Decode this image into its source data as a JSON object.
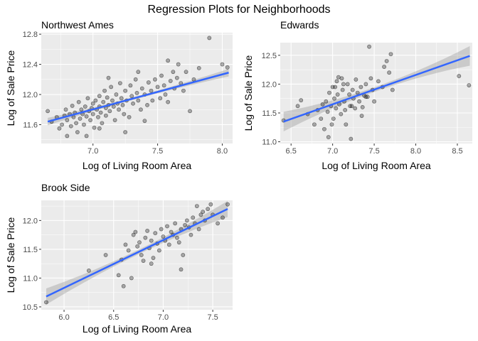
{
  "title": "Regression Plots for Neighborhoods",
  "colors": {
    "panel_bg": "#ebebeb",
    "grid_major": "#ffffff",
    "point_fill": "#000000",
    "point_stroke": "#000000",
    "line": "#3366ff",
    "ribbon": "#999999"
  },
  "chart_data": [
    {
      "type": "scatter",
      "title": "Northwest Ames",
      "xlabel": "Log of Living Room Area",
      "ylabel": "Log of Sale Price",
      "xlim": [
        6.6,
        8.08
      ],
      "ylim": [
        11.35,
        12.82
      ],
      "xticks": [
        7.0,
        7.5,
        8.0
      ],
      "yticks": [
        11.6,
        12.0,
        12.4,
        12.8
      ],
      "xtick_labels": [
        "7.0",
        "7.5",
        "8.0"
      ],
      "ytick_labels": [
        "11.6",
        "12.0",
        "12.4",
        "12.8"
      ],
      "grid": true,
      "fit": {
        "x": [
          6.65,
          8.05
        ],
        "y": [
          11.64,
          12.29
        ],
        "band_half_width_ends": 0.05,
        "band_half_width_mid": 0.018
      },
      "points": [
        [
          6.65,
          11.78
        ],
        [
          6.68,
          11.64
        ],
        [
          6.72,
          11.7
        ],
        [
          6.74,
          11.55
        ],
        [
          6.76,
          11.6
        ],
        [
          6.78,
          11.72
        ],
        [
          6.79,
          11.8
        ],
        [
          6.8,
          11.66
        ],
        [
          6.82,
          11.74
        ],
        [
          6.83,
          11.58
        ],
        [
          6.84,
          11.85
        ],
        [
          6.85,
          11.7
        ],
        [
          6.86,
          11.76
        ],
        [
          6.87,
          11.62
        ],
        [
          6.88,
          11.5
        ],
        [
          6.89,
          11.9
        ],
        [
          6.9,
          11.68
        ],
        [
          6.91,
          11.8
        ],
        [
          6.92,
          11.74
        ],
        [
          6.93,
          11.6
        ],
        [
          6.94,
          11.84
        ],
        [
          6.95,
          11.71
        ],
        [
          6.96,
          11.95
        ],
        [
          6.97,
          11.78
        ],
        [
          6.98,
          11.66
        ],
        [
          6.99,
          11.82
        ],
        [
          7.0,
          11.88
        ],
        [
          7.0,
          11.74
        ],
        [
          7.01,
          11.56
        ],
        [
          7.02,
          11.92
        ],
        [
          7.03,
          11.8
        ],
        [
          7.04,
          11.7
        ],
        [
          7.05,
          11.98
        ],
        [
          7.05,
          11.84
        ],
        [
          7.06,
          11.76
        ],
        [
          7.07,
          11.62
        ],
        [
          7.08,
          11.9
        ],
        [
          7.09,
          12.05
        ],
        [
          7.1,
          11.82
        ],
        [
          7.1,
          11.72
        ],
        [
          7.11,
          11.96
        ],
        [
          7.12,
          11.86
        ],
        [
          7.13,
          11.78
        ],
        [
          7.14,
          12.1
        ],
        [
          7.15,
          11.92
        ],
        [
          7.16,
          11.84
        ],
        [
          7.17,
          11.66
        ],
        [
          7.18,
          12.0
        ],
        [
          7.19,
          11.88
        ],
        [
          7.2,
          11.8
        ],
        [
          7.21,
          12.15
        ],
        [
          7.22,
          11.95
        ],
        [
          7.23,
          11.86
        ],
        [
          7.24,
          11.74
        ],
        [
          7.25,
          12.05
        ],
        [
          7.26,
          11.92
        ],
        [
          7.28,
          11.7
        ],
        [
          7.29,
          12.12
        ],
        [
          7.3,
          11.98
        ],
        [
          7.31,
          11.88
        ],
        [
          7.33,
          12.2
        ],
        [
          7.34,
          12.02
        ],
        [
          7.35,
          11.92
        ],
        [
          7.37,
          11.8
        ],
        [
          7.38,
          12.08
        ],
        [
          7.4,
          12.0
        ],
        [
          7.42,
          11.86
        ],
        [
          7.43,
          12.16
        ],
        [
          7.45,
          12.05
        ],
        [
          7.46,
          11.92
        ],
        [
          7.48,
          12.2
        ],
        [
          7.5,
          12.1
        ],
        [
          7.52,
          11.95
        ],
        [
          7.53,
          12.25
        ],
        [
          7.55,
          12.12
        ],
        [
          7.56,
          12.0
        ],
        [
          7.58,
          11.9
        ],
        [
          7.6,
          12.18
        ],
        [
          7.62,
          12.3
        ],
        [
          7.63,
          12.08
        ],
        [
          7.65,
          12.22
        ],
        [
          7.66,
          12.4
        ],
        [
          7.68,
          12.15
        ],
        [
          7.7,
          12.05
        ],
        [
          7.72,
          12.3
        ],
        [
          7.75,
          11.78
        ],
        [
          7.78,
          12.2
        ],
        [
          7.82,
          12.35
        ],
        [
          7.9,
          12.75
        ],
        [
          8.0,
          12.4
        ],
        [
          8.04,
          12.36
        ],
        [
          6.95,
          11.45
        ],
        [
          7.05,
          11.55
        ],
        [
          7.25,
          11.5
        ],
        [
          7.4,
          11.65
        ],
        [
          6.8,
          11.45
        ],
        [
          7.12,
          12.22
        ],
        [
          7.35,
          12.3
        ],
        [
          7.58,
          12.45
        ]
      ]
    },
    {
      "type": "scatter",
      "title": "Edwards",
      "xlabel": "Log of Living Room Area",
      "ylabel": "Log of Sale Price",
      "xlim": [
        6.37,
        8.68
      ],
      "ylim": [
        10.97,
        12.72
      ],
      "xticks": [
        6.5,
        7.0,
        7.5,
        8.0,
        8.5
      ],
      "yticks": [
        11.0,
        11.5,
        12.0,
        12.5
      ],
      "xtick_labels": [
        "6.5",
        "7.0",
        "7.5",
        "8.0",
        "8.5"
      ],
      "ytick_labels": [
        "11.0",
        "11.5",
        "12.0",
        "12.5"
      ],
      "grid": true,
      "fit": {
        "x": [
          6.41,
          8.65
        ],
        "y": [
          11.35,
          12.49
        ],
        "band_half_width_ends": 0.17,
        "band_half_width_mid": 0.04
      },
      "points": [
        [
          6.41,
          11.37
        ],
        [
          6.58,
          11.62
        ],
        [
          6.62,
          11.72
        ],
        [
          6.7,
          11.48
        ],
        [
          6.78,
          11.3
        ],
        [
          6.82,
          11.55
        ],
        [
          6.86,
          11.4
        ],
        [
          6.88,
          11.65
        ],
        [
          6.9,
          11.22
        ],
        [
          6.92,
          11.7
        ],
        [
          6.94,
          11.52
        ],
        [
          6.96,
          11.85
        ],
        [
          6.98,
          11.62
        ],
        [
          7.0,
          11.95
        ],
        [
          7.01,
          11.4
        ],
        [
          7.02,
          11.75
        ],
        [
          7.04,
          11.58
        ],
        [
          7.05,
          12.05
        ],
        [
          7.06,
          11.82
        ],
        [
          7.08,
          11.65
        ],
        [
          7.1,
          11.48
        ],
        [
          7.11,
          12.1
        ],
        [
          7.12,
          11.9
        ],
        [
          7.14,
          11.7
        ],
        [
          7.15,
          11.55
        ],
        [
          7.16,
          11.3
        ],
        [
          7.18,
          12.0
        ],
        [
          7.2,
          11.82
        ],
        [
          7.21,
          11.62
        ],
        [
          7.22,
          11.05
        ],
        [
          7.24,
          11.9
        ],
        [
          7.25,
          11.75
        ],
        [
          7.27,
          11.58
        ],
        [
          7.28,
          12.08
        ],
        [
          7.3,
          11.85
        ],
        [
          7.32,
          11.7
        ],
        [
          7.34,
          11.95
        ],
        [
          7.36,
          11.6
        ],
        [
          7.38,
          11.8
        ],
        [
          7.4,
          12.0
        ],
        [
          7.42,
          11.78
        ],
        [
          7.44,
          12.65
        ],
        [
          7.46,
          12.1
        ],
        [
          7.48,
          11.9
        ],
        [
          7.5,
          11.7
        ],
        [
          7.55,
          12.05
        ],
        [
          7.6,
          11.95
        ],
        [
          7.62,
          12.3
        ],
        [
          7.65,
          12.4
        ],
        [
          7.68,
          12.2
        ],
        [
          7.7,
          12.52
        ],
        [
          7.72,
          11.9
        ],
        [
          6.95,
          11.08
        ],
        [
          7.03,
          11.95
        ],
        [
          7.13,
          12.0
        ],
        [
          7.23,
          11.62
        ],
        [
          6.99,
          11.3
        ],
        [
          7.07,
          12.12
        ],
        [
          7.35,
          11.45
        ],
        [
          7.4,
          11.78
        ],
        [
          8.52,
          12.14
        ],
        [
          8.64,
          11.98
        ]
      ]
    },
    {
      "type": "scatter",
      "title": "Brook Side",
      "xlabel": "Log of Living Room Area",
      "ylabel": "Log of Sale Price",
      "xlim": [
        5.77,
        7.7
      ],
      "ylim": [
        10.45,
        12.35
      ],
      "xticks": [
        6.0,
        6.5,
        7.0,
        7.5
      ],
      "yticks": [
        10.5,
        11.0,
        11.5,
        12.0
      ],
      "xtick_labels": [
        "6.0",
        "6.5",
        "7.0",
        "7.5"
      ],
      "ytick_labels": [
        "10.5",
        "11.0",
        "11.5",
        "12.0"
      ],
      "grid": true,
      "fit": {
        "x": [
          5.82,
          7.65
        ],
        "y": [
          10.68,
          12.2
        ],
        "band_half_width_ends": 0.14,
        "band_half_width_mid": 0.04
      },
      "points": [
        [
          5.82,
          10.58
        ],
        [
          6.25,
          11.13
        ],
        [
          6.42,
          11.4
        ],
        [
          6.55,
          11.05
        ],
        [
          6.58,
          11.32
        ],
        [
          6.6,
          10.86
        ],
        [
          6.62,
          11.58
        ],
        [
          6.65,
          11.48
        ],
        [
          6.68,
          11.0
        ],
        [
          6.7,
          11.75
        ],
        [
          6.72,
          11.8
        ],
        [
          6.74,
          11.55
        ],
        [
          6.76,
          11.62
        ],
        [
          6.78,
          11.4
        ],
        [
          6.8,
          11.3
        ],
        [
          6.82,
          11.7
        ],
        [
          6.84,
          11.82
        ],
        [
          6.86,
          11.52
        ],
        [
          6.88,
          11.65
        ],
        [
          6.9,
          11.35
        ],
        [
          6.92,
          11.78
        ],
        [
          6.94,
          11.6
        ],
        [
          6.96,
          11.48
        ],
        [
          6.98,
          11.85
        ],
        [
          7.0,
          11.72
        ],
        [
          7.02,
          11.65
        ],
        [
          7.04,
          11.9
        ],
        [
          7.06,
          11.58
        ],
        [
          7.08,
          11.8
        ],
        [
          7.1,
          11.75
        ],
        [
          7.12,
          11.95
        ],
        [
          7.14,
          11.7
        ],
        [
          7.16,
          11.62
        ],
        [
          7.18,
          11.85
        ],
        [
          7.2,
          11.4
        ],
        [
          7.22,
          11.92
        ],
        [
          7.24,
          12.0
        ],
        [
          7.26,
          11.88
        ],
        [
          7.28,
          11.75
        ],
        [
          7.3,
          12.05
        ],
        [
          7.32,
          11.95
        ],
        [
          7.34,
          12.25
        ],
        [
          7.36,
          11.85
        ],
        [
          7.38,
          12.1
        ],
        [
          7.4,
          12.15
        ],
        [
          7.42,
          12.0
        ],
        [
          7.45,
          12.2
        ],
        [
          7.5,
          12.1
        ],
        [
          7.55,
          11.95
        ],
        [
          7.6,
          12.05
        ],
        [
          7.65,
          12.28
        ],
        [
          7.48,
          12.28
        ],
        [
          6.88,
          11.25
        ],
        [
          7.18,
          11.15
        ]
      ]
    }
  ]
}
